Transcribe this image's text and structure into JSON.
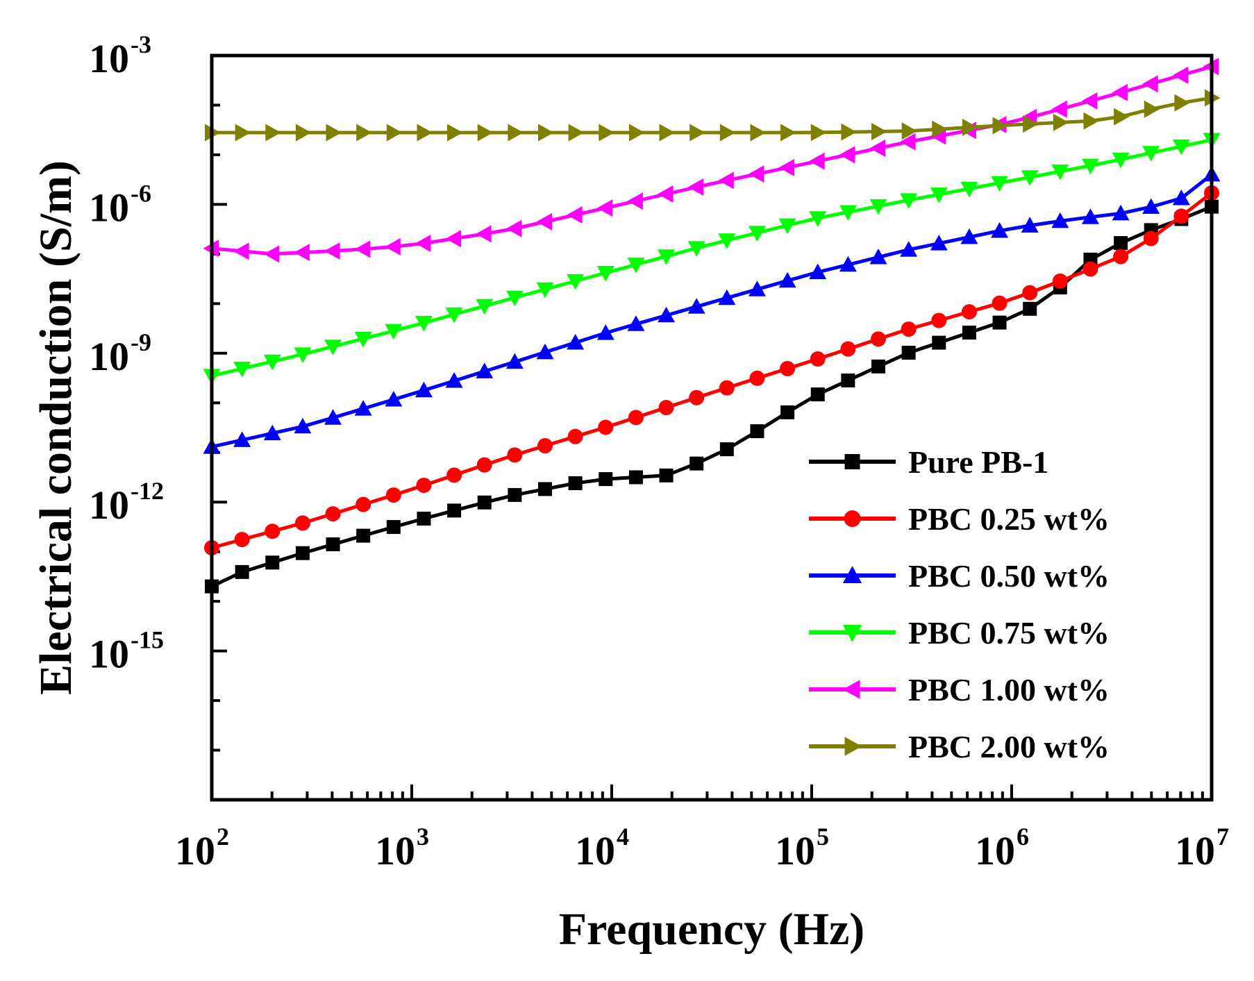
{
  "chart_data": {
    "type": "line",
    "title": "",
    "xlabel": "Frequency (Hz)",
    "ylabel": "Electrical conduction (S/m)",
    "xscale": "log",
    "yscale": "log",
    "xlim": [
      100,
      10000000
    ],
    "ylim": [
      1e-18,
      0.001
    ],
    "grid": false,
    "legend_position": "bottom-right",
    "x_ticks": [
      {
        "value": 100,
        "base": "10",
        "exp": "2"
      },
      {
        "value": 1000,
        "base": "10",
        "exp": "3"
      },
      {
        "value": 10000,
        "base": "10",
        "exp": "4"
      },
      {
        "value": 100000,
        "base": "10",
        "exp": "5"
      },
      {
        "value": 1000000,
        "base": "10",
        "exp": "6"
      },
      {
        "value": 10000000,
        "base": "10",
        "exp": "7"
      }
    ],
    "y_ticks": [
      {
        "value": 1e-15,
        "base": "10",
        "exp": "-15"
      },
      {
        "value": 1e-12,
        "base": "10",
        "exp": "-12"
      },
      {
        "value": 1e-09,
        "base": "10",
        "exp": "-9"
      },
      {
        "value": 1e-06,
        "base": "10",
        "exp": "-6"
      },
      {
        "value": 0.001,
        "base": "10",
        "exp": "-3"
      }
    ],
    "series": [
      {
        "name": "Pure PB-1",
        "color": "#000000",
        "marker": "square",
        "points": [
          [
            100,
            2e-14
          ],
          [
            130,
            3.5e-14
          ],
          [
            300,
            1e-13
          ],
          [
            1000,
            4e-13
          ],
          [
            3000,
            1.3e-12
          ],
          [
            8000,
            2.8e-12
          ],
          [
            20000,
            3.5e-12
          ],
          [
            40000,
            1.3e-11
          ],
          [
            100000,
            1.3e-10
          ],
          [
            300000,
            1e-09
          ],
          [
            1000000,
            5e-09
          ],
          [
            1500000,
            1.2e-08
          ],
          [
            2500000,
            8e-08
          ],
          [
            4000000,
            2.2e-07
          ],
          [
            7000000,
            5e-07
          ],
          [
            10000000,
            9e-07
          ]
        ]
      },
      {
        "name": "PBC 0.25 wt%",
        "color": "#ff0000",
        "marker": "circle",
        "points": [
          [
            100,
            1.2e-13
          ],
          [
            300,
            4e-13
          ],
          [
            1000,
            1.8e-12
          ],
          [
            3000,
            8e-12
          ],
          [
            10000,
            3.5e-11
          ],
          [
            30000,
            1.5e-10
          ],
          [
            100000,
            7e-10
          ],
          [
            300000,
            3e-09
          ],
          [
            1000000,
            1.2e-08
          ],
          [
            2000000,
            3.5e-08
          ],
          [
            4000000,
            1.1e-07
          ],
          [
            6000000,
            3.5e-07
          ],
          [
            10000000,
            1.7e-06
          ]
        ]
      },
      {
        "name": "PBC 0.50 wt%",
        "color": "#0000ff",
        "marker": "triangle-up",
        "points": [
          [
            100,
            1.3e-11
          ],
          [
            300,
            3.5e-11
          ],
          [
            1000,
            1.5e-10
          ],
          [
            3000,
            6e-10
          ],
          [
            10000,
            2.8e-09
          ],
          [
            30000,
            1e-08
          ],
          [
            100000,
            4e-08
          ],
          [
            300000,
            1.2e-07
          ],
          [
            1000000,
            3.3e-07
          ],
          [
            2000000,
            5e-07
          ],
          [
            4000000,
            7e-07
          ],
          [
            7000000,
            1.3e-06
          ],
          [
            10000000,
            4e-06
          ]
        ]
      },
      {
        "name": "PBC 0.75 wt%",
        "color": "#00ff00",
        "marker": "triangle-down",
        "points": [
          [
            100,
            3.5e-10
          ],
          [
            300,
            1e-09
          ],
          [
            1000,
            3.5e-09
          ],
          [
            3000,
            1.2e-08
          ],
          [
            10000,
            4.5e-08
          ],
          [
            30000,
            1.5e-07
          ],
          [
            100000,
            5e-07
          ],
          [
            300000,
            1.2e-06
          ],
          [
            1000000,
            3e-06
          ],
          [
            3000000,
            7e-06
          ],
          [
            10000000,
            2e-05
          ]
        ]
      },
      {
        "name": "PBC 1.00 wt%",
        "color": "#ff00ff",
        "marker": "triangle-left",
        "points": [
          [
            100,
            1.3e-07
          ],
          [
            200,
            1e-07
          ],
          [
            500,
            1.2e-07
          ],
          [
            1000,
            1.5e-07
          ],
          [
            3000,
            3e-07
          ],
          [
            10000,
            9e-07
          ],
          [
            30000,
            2.5e-06
          ],
          [
            100000,
            7e-06
          ],
          [
            300000,
            1.8e-05
          ],
          [
            1000000,
            4.5e-05
          ],
          [
            3000000,
            0.00015
          ],
          [
            10000000,
            0.0006
          ]
        ]
      },
      {
        "name": "PBC 2.00 wt%",
        "color": "#808000",
        "marker": "triangle-right",
        "points": [
          [
            100,
            2.8e-05
          ],
          [
            1000,
            2.8e-05
          ],
          [
            10000,
            2.8e-05
          ],
          [
            100000,
            2.8e-05
          ],
          [
            300000,
            3e-05
          ],
          [
            1000000,
            4e-05
          ],
          [
            3000000,
            5e-05
          ],
          [
            6000000,
            0.0001
          ],
          [
            10000000,
            0.00014
          ]
        ]
      }
    ]
  }
}
